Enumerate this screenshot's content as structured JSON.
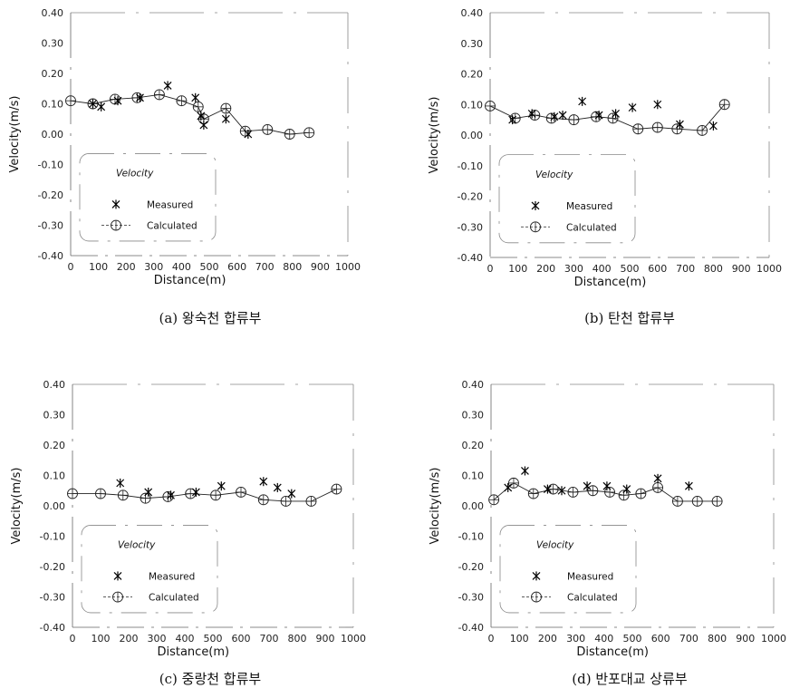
{
  "chart_data": [
    {
      "type": "line",
      "caption": "(a) 왕숙천 합류부",
      "xlabel": "Distance(m)",
      "ylabel": "Velocity(m/s)",
      "xlim": [
        0,
        1000
      ],
      "ylim": [
        -0.4,
        0.4
      ],
      "xticks": [
        "0",
        "100",
        "200",
        "300",
        "400",
        "500",
        "600",
        "700",
        "800",
        "900",
        "1000"
      ],
      "yticks": [
        "0.40",
        "0.30",
        "0.20",
        "0.10",
        "0.00",
        "-0.10",
        "-0.20",
        "-0.30",
        "-0.40"
      ],
      "legend": {
        "title": "Velocity",
        "placement": "bottom-left",
        "entries": [
          "Measured",
          "Calculated"
        ]
      },
      "series": [
        {
          "name": "Measured",
          "style": "marker-star",
          "x": [
            80,
            110,
            170,
            250,
            350,
            450,
            470,
            480,
            560,
            640
          ],
          "y": [
            0.1,
            0.09,
            0.11,
            0.12,
            0.16,
            0.12,
            0.06,
            0.03,
            0.05,
            0.0
          ]
        },
        {
          "name": "Calculated",
          "style": "line-circle",
          "x": [
            0,
            80,
            160,
            240,
            320,
            400,
            460,
            480,
            560,
            630,
            710,
            790,
            860
          ],
          "y": [
            0.11,
            0.1,
            0.115,
            0.12,
            0.13,
            0.11,
            0.09,
            0.05,
            0.085,
            0.01,
            0.015,
            0.0,
            0.005
          ]
        }
      ]
    },
    {
      "type": "line",
      "caption": "(b) 탄천 합류부",
      "xlabel": "Distance(m)",
      "ylabel": "Velocity(m/s)",
      "xlim": [
        0,
        1000
      ],
      "ylim": [
        -0.4,
        0.4
      ],
      "xticks": [
        "0",
        "100",
        "200",
        "300",
        "400",
        "500",
        "600",
        "700",
        "800",
        "900",
        "1000"
      ],
      "yticks": [
        "0.40",
        "0.30",
        "0.20",
        "0.10",
        "0.00",
        "-0.10",
        "-0.20",
        "-0.30",
        "-0.40"
      ],
      "legend": {
        "title": "Velocity",
        "placement": "bottom-left",
        "entries": [
          "Measured",
          "Calculated"
        ]
      },
      "series": [
        {
          "name": "Measured",
          "style": "marker-star",
          "x": [
            80,
            150,
            230,
            260,
            330,
            390,
            450,
            510,
            600,
            680,
            800
          ],
          "y": [
            0.05,
            0.07,
            0.06,
            0.065,
            0.11,
            0.065,
            0.07,
            0.09,
            0.1,
            0.035,
            0.03
          ]
        },
        {
          "name": "Calculated",
          "style": "line-circle",
          "x": [
            0,
            90,
            160,
            220,
            300,
            380,
            440,
            530,
            600,
            670,
            760,
            840
          ],
          "y": [
            0.095,
            0.055,
            0.065,
            0.055,
            0.05,
            0.06,
            0.055,
            0.02,
            0.025,
            0.02,
            0.015,
            0.1
          ]
        }
      ]
    },
    {
      "type": "line",
      "caption": "(c) 중랑천 합류부",
      "xlabel": "Distance(m)",
      "ylabel": "Velocity(m/s)",
      "xlim": [
        0,
        1000
      ],
      "ylim": [
        -0.4,
        0.4
      ],
      "xticks": [
        "0",
        "100",
        "200",
        "300",
        "400",
        "500",
        "600",
        "700",
        "800",
        "900",
        "1000"
      ],
      "yticks": [
        "0.40",
        "0.30",
        "0.20",
        "0.10",
        "0.00",
        "-0.10",
        "-0.20",
        "-0.30",
        "-0.40"
      ],
      "legend": {
        "title": "Velocity",
        "placement": "bottom-left",
        "entries": [
          "Measured",
          "Calculated"
        ]
      },
      "series": [
        {
          "name": "Measured",
          "style": "marker-star",
          "x": [
            170,
            270,
            350,
            440,
            530,
            680,
            730,
            780
          ],
          "y": [
            0.075,
            0.045,
            0.035,
            0.045,
            0.065,
            0.08,
            0.06,
            0.04
          ]
        },
        {
          "name": "Calculated",
          "style": "line-circle",
          "x": [
            0,
            100,
            180,
            260,
            340,
            420,
            510,
            600,
            680,
            760,
            850,
            940
          ],
          "y": [
            0.04,
            0.04,
            0.035,
            0.025,
            0.03,
            0.04,
            0.035,
            0.045,
            0.02,
            0.015,
            0.015,
            0.055
          ]
        }
      ]
    },
    {
      "type": "line",
      "caption": "(d) 반포대교 상류부",
      "xlabel": "Distance(m)",
      "ylabel": "Velocity(m/s)",
      "xlim": [
        0,
        1000
      ],
      "ylim": [
        -0.4,
        0.4
      ],
      "xticks": [
        "0",
        "100",
        "200",
        "300",
        "400",
        "500",
        "600",
        "700",
        "800",
        "900",
        "1000"
      ],
      "yticks": [
        "0.40",
        "0.30",
        "0.20",
        "0.10",
        "0.00",
        "-0.10",
        "-0.20",
        "-0.30",
        "-0.40"
      ],
      "legend": {
        "title": "Velocity",
        "placement": "bottom-left",
        "entries": [
          "Measured",
          "Calculated"
        ]
      },
      "series": [
        {
          "name": "Measured",
          "style": "marker-star",
          "x": [
            60,
            120,
            200,
            250,
            340,
            410,
            480,
            590,
            700
          ],
          "y": [
            0.06,
            0.115,
            0.055,
            0.05,
            0.065,
            0.065,
            0.055,
            0.09,
            0.065
          ]
        },
        {
          "name": "Calculated",
          "style": "line-circle",
          "x": [
            10,
            80,
            150,
            220,
            290,
            360,
            420,
            470,
            530,
            590,
            660,
            730,
            800
          ],
          "y": [
            0.02,
            0.075,
            0.04,
            0.055,
            0.045,
            0.05,
            0.045,
            0.035,
            0.04,
            0.06,
            0.015,
            0.015,
            0.015
          ]
        }
      ]
    }
  ]
}
